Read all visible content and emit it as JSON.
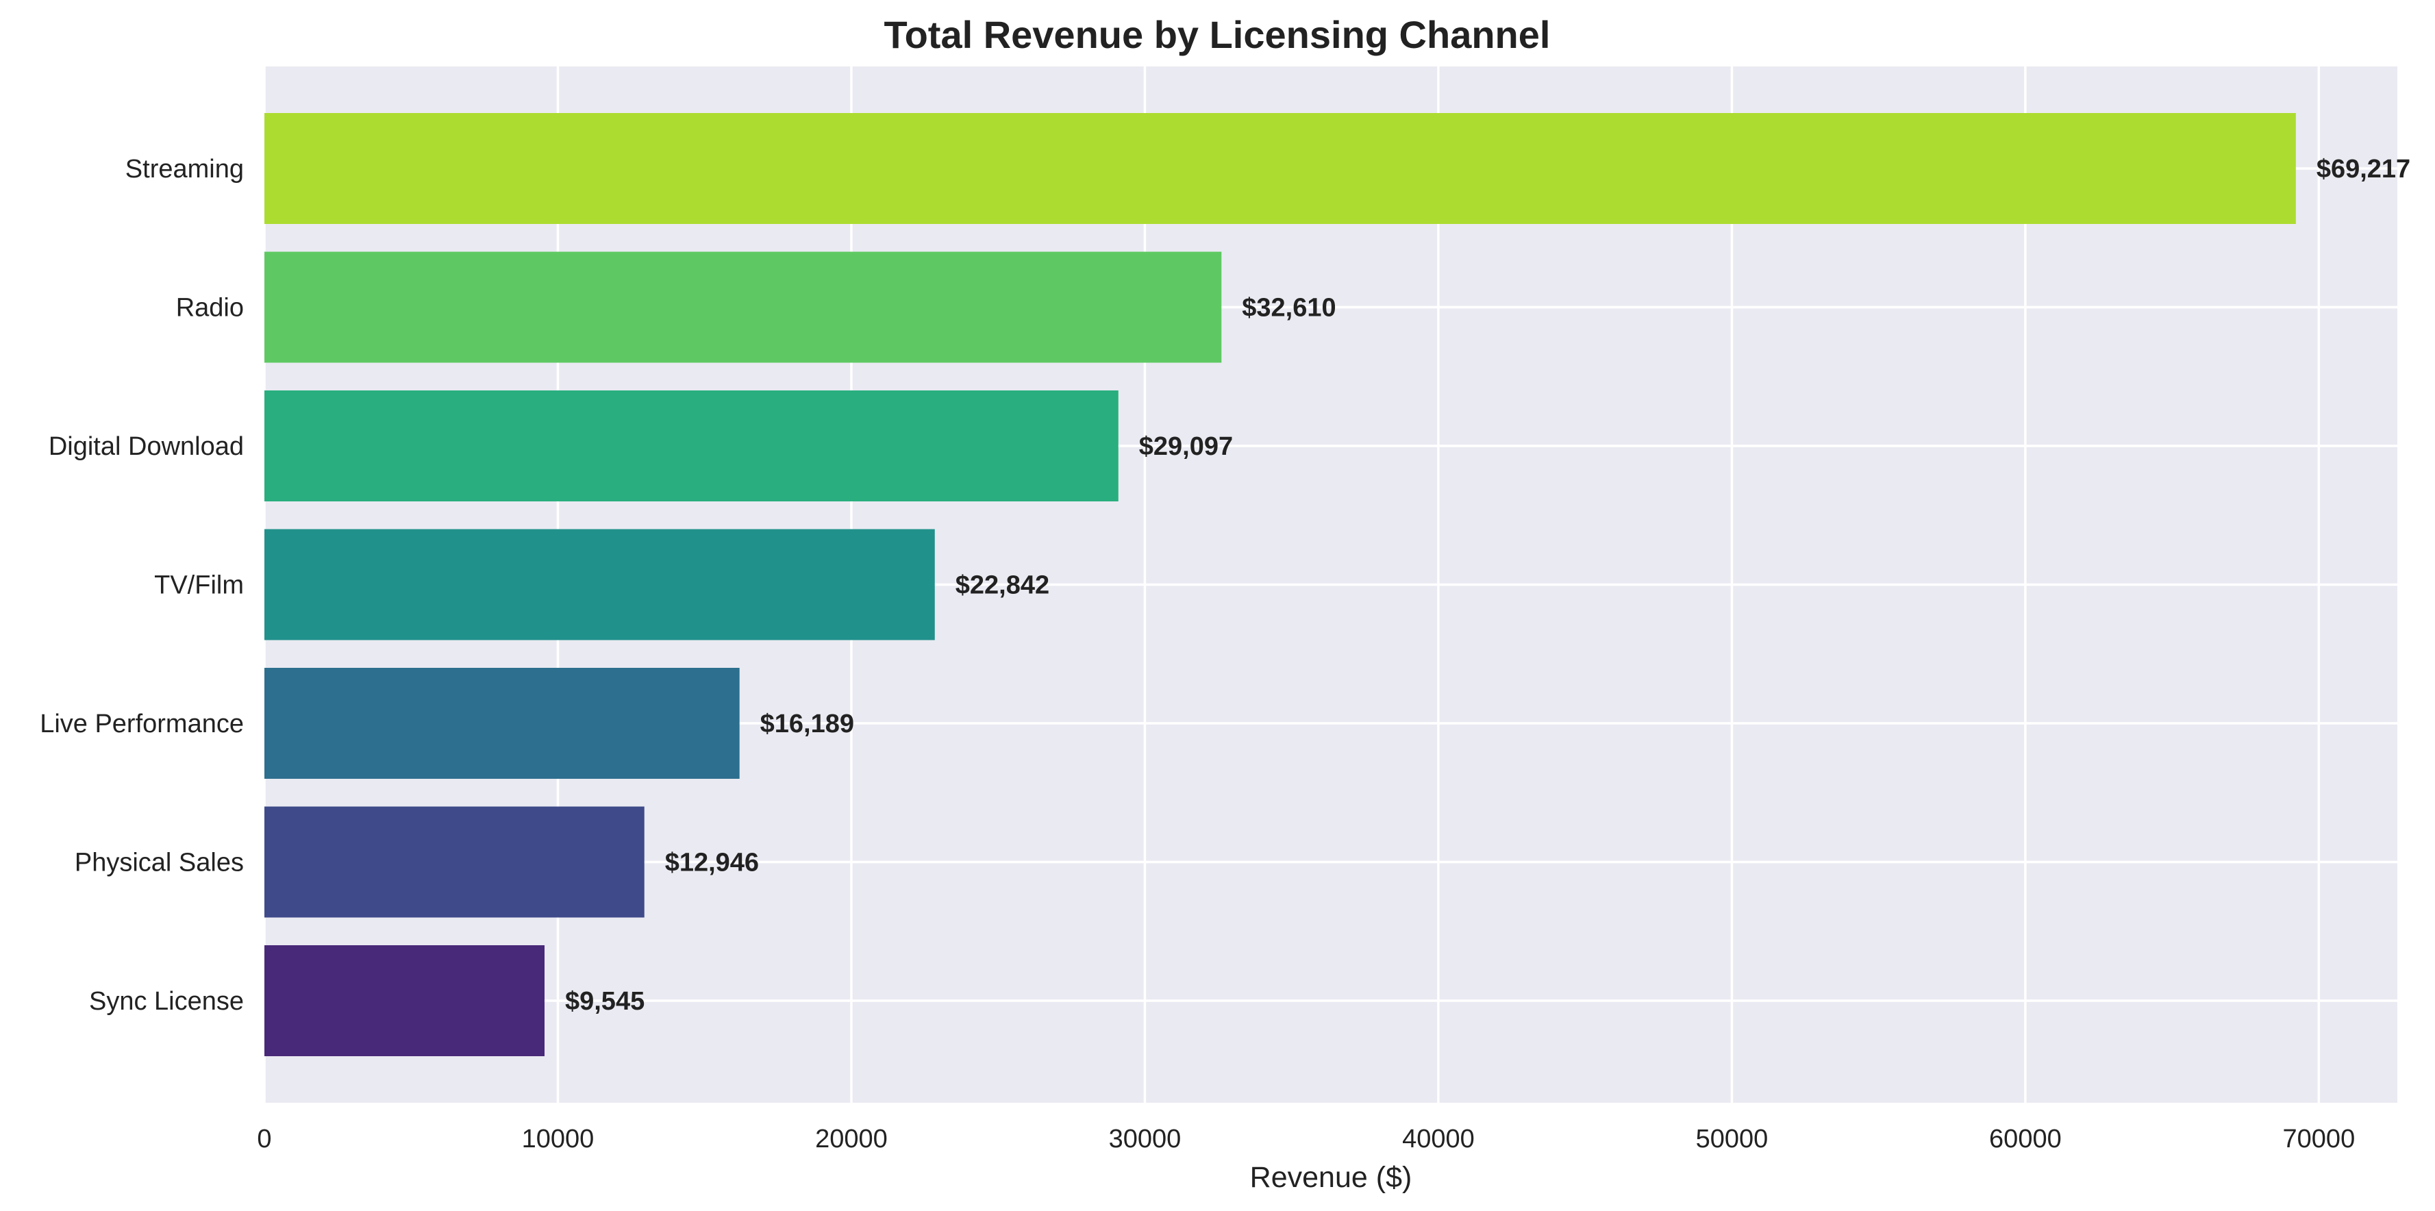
{
  "chart_data": {
    "type": "bar",
    "orientation": "horizontal",
    "title": "Total Revenue by Licensing Channel",
    "xlabel": "Revenue ($)",
    "ylabel": "",
    "categories": [
      "Sync License",
      "Physical Sales",
      "Live Performance",
      "TV/Film",
      "Digital Download",
      "Radio",
      "Streaming"
    ],
    "values": [
      9545,
      12946,
      16189,
      22842,
      29097,
      32610,
      69217
    ],
    "value_labels": [
      "$9,545",
      "$12,946",
      "$16,189",
      "$22,842",
      "$29,097",
      "$32,610",
      "$69,217"
    ],
    "colors": [
      "#482878",
      "#3e4a89",
      "#2d6f8e",
      "#21918c",
      "#29af7f",
      "#5ec962",
      "#addc30"
    ],
    "xlim": [
      0,
      72675
    ],
    "xticks": [
      0,
      10000,
      20000,
      30000,
      40000,
      50000,
      60000,
      70000
    ],
    "xtick_labels": [
      "0",
      "10000",
      "20000",
      "30000",
      "40000",
      "50000",
      "60000",
      "70000"
    ],
    "grid": true,
    "plot_background": "#eaeaf2"
  }
}
